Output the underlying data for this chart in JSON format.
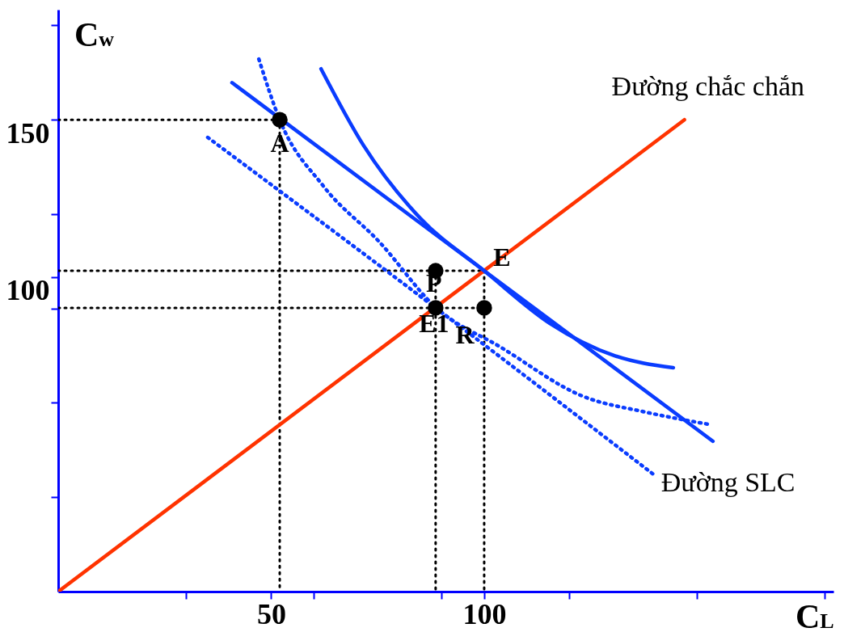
{
  "chart_data": {
    "type": "line",
    "xlabel": "C$_{L}$",
    "ylabel": "C$_{w}$",
    "xlim": [
      0,
      182
    ],
    "ylim": [
      0,
      185
    ],
    "xticks": [
      {
        "value": 30,
        "label": null
      },
      {
        "value": 50,
        "label": "50"
      },
      {
        "value": 60,
        "label": null
      },
      {
        "value": 90,
        "label": null
      },
      {
        "value": 100,
        "label": "100"
      },
      {
        "value": 120,
        "label": null
      },
      {
        "value": 150,
        "label": null
      },
      {
        "value": 180,
        "label": null
      }
    ],
    "yticks": [
      {
        "value": 30,
        "label": null
      },
      {
        "value": 60,
        "label": null
      },
      {
        "value": 90,
        "label": null
      },
      {
        "value": 100,
        "label": "100"
      },
      {
        "value": 120,
        "label": null
      },
      {
        "value": 150,
        "label": "150"
      },
      {
        "value": 180,
        "label": null
      }
    ],
    "grid": false,
    "series": [
      {
        "color": "#000000",
        "line_style": "dotted",
        "x": [
          0,
          52
        ],
        "values": [
          150,
          150
        ]
      },
      {
        "color": "#000000",
        "line_style": "dotted",
        "x": [
          52,
          52
        ],
        "values": [
          150,
          0
        ]
      },
      {
        "color": "#000000",
        "line_style": "dotted",
        "x": [
          0,
          100
        ],
        "values": [
          102,
          102
        ]
      },
      {
        "color": "#000000",
        "line_style": "dotted",
        "x": [
          0,
          100
        ],
        "values": [
          90.2,
          90.2
        ]
      },
      {
        "color": "#000000",
        "line_style": "dotted",
        "x": [
          88.6,
          88.6
        ],
        "values": [
          102,
          0
        ]
      },
      {
        "color": "#000000",
        "line_style": "dotted",
        "x": [
          100,
          100
        ],
        "values": [
          102,
          0
        ]
      },
      {
        "color": "#ff3300",
        "line_style": "solid",
        "x": [
          0,
          147
        ],
        "values": [
          0,
          150
        ]
      },
      {
        "color": "#0a3cff",
        "line_style": "solid",
        "x": [
          40.8,
          100,
          153.7
        ],
        "values": [
          161.8,
          102,
          47.8
        ]
      },
      {
        "color": "#0a3cff",
        "line_style": "solid",
        "x": [
          61.7,
          71.7,
          85,
          100,
          115.4,
          130.6,
          144.4
        ],
        "values": [
          166.2,
          141.8,
          118.7,
          102,
          85.3,
          75,
          71.2
        ]
      },
      {
        "color": "#0a3cff",
        "line_style": "dotted",
        "x": [
          47.1,
          52,
          62.2,
          75.5,
          88.6,
          104,
          123,
          138.1,
          152.6
        ],
        "values": [
          169.3,
          150,
          129,
          111,
          90.4,
          77.6,
          62.2,
          57,
          53.2
        ]
      },
      {
        "color": "#0a3cff",
        "line_style": "dotted",
        "x": [
          35.1,
          88.6,
          140
        ],
        "values": [
          144.4,
          90.2,
          37
        ]
      },
      {
        "type": "scatter",
        "color": "#000000",
        "marker": "circle",
        "x": [
          52,
          88.6,
          88.6,
          100
        ],
        "values": [
          150,
          102,
          90.2,
          90.2
        ]
      }
    ],
    "annotations": [
      {
        "text": "A",
        "x": 52,
        "y": 150
      },
      {
        "text": "P",
        "x": 88.6,
        "y": 102
      },
      {
        "text": "E",
        "x": 100,
        "y": 102
      },
      {
        "text": "E1",
        "x": 88.6,
        "y": 90.2
      },
      {
        "text": "R",
        "x": 100,
        "y": 90.2
      },
      {
        "text": "Đường chắc chắn",
        "x": 147,
        "y": 150
      },
      {
        "text": "Đường SLC",
        "x": 140,
        "y": 37
      }
    ]
  }
}
